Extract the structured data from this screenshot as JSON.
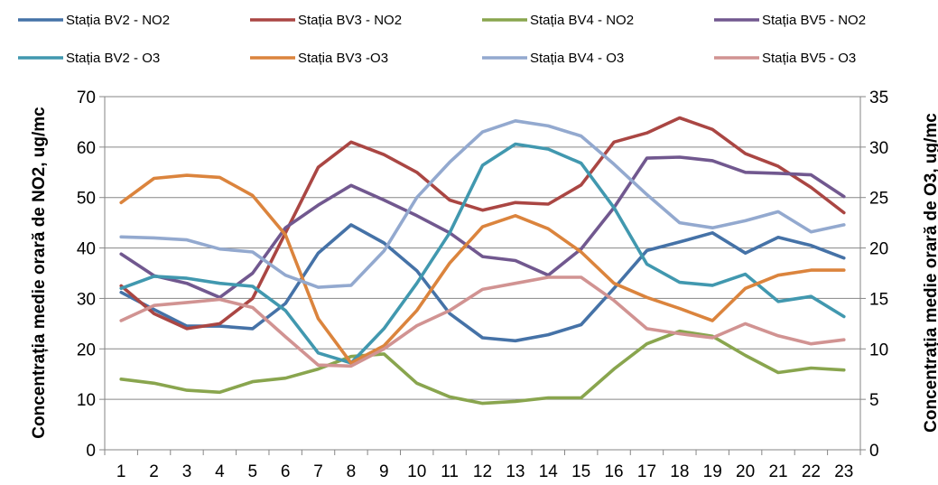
{
  "chart_data": {
    "type": "line",
    "categories": [
      "1",
      "2",
      "3",
      "4",
      "5",
      "6",
      "7",
      "8",
      "9",
      "10",
      "11",
      "12",
      "13",
      "14",
      "15",
      "16",
      "17",
      "18",
      "19",
      "20",
      "21",
      "22",
      "23"
    ],
    "ylabel_left": "Concentrația medie orară de NO2, ug/mc",
    "ylabel_right": "Concentrația medie orară de O3, ug/mc",
    "ylim_left": [
      0,
      70
    ],
    "ylim_right": [
      0,
      35
    ],
    "yticks_left": [
      "0",
      "10",
      "20",
      "30",
      "40",
      "50",
      "60",
      "70"
    ],
    "yticks_right": [
      "0",
      "5",
      "10",
      "15",
      "20",
      "25",
      "30",
      "35"
    ],
    "grid": true,
    "legend_position": "top",
    "series": [
      {
        "name": "Stația BV2 - NO2",
        "axis": "left",
        "color": "#4572A7",
        "values": [
          31.2,
          27.8,
          24.5,
          24.5,
          24.0,
          29.0,
          39.0,
          44.6,
          41.0,
          35.5,
          27.0,
          22.2,
          21.6,
          22.8,
          24.8,
          32.0,
          39.5,
          41.2,
          43.0,
          39.0,
          42.1,
          40.5,
          38.0
        ]
      },
      {
        "name": "Stația BV3 - NO2",
        "axis": "left",
        "color": "#AA4643",
        "values": [
          32.5,
          27.0,
          24.0,
          25.0,
          30.0,
          43.0,
          56.0,
          61.0,
          58.5,
          55.0,
          49.5,
          47.5,
          49.0,
          48.7,
          52.5,
          61.0,
          62.8,
          65.8,
          63.5,
          58.7,
          56.2,
          52.0,
          47.0
        ]
      },
      {
        "name": "Stația BV4 - NO2",
        "axis": "left",
        "color": "#89A54E",
        "values": [
          14.0,
          13.2,
          11.8,
          11.4,
          13.5,
          14.2,
          16.0,
          18.5,
          19.0,
          13.2,
          10.5,
          9.2,
          9.6,
          10.3,
          10.3,
          16.0,
          21.0,
          23.5,
          22.5,
          18.7,
          15.3,
          16.2,
          15.8
        ]
      },
      {
        "name": "Stația BV5 - NO2",
        "axis": "left",
        "color": "#71588F",
        "values": [
          38.8,
          34.5,
          33.0,
          30.2,
          35.0,
          44.0,
          48.5,
          52.4,
          49.5,
          46.4,
          43.0,
          38.3,
          37.5,
          34.6,
          39.8,
          48.0,
          57.8,
          58.0,
          57.3,
          55.0,
          54.8,
          54.5,
          50.2
        ]
      },
      {
        "name": "Stația BV2 - O3",
        "axis": "right",
        "color": "#4198AF",
        "values": [
          16.0,
          17.2,
          17.0,
          16.5,
          16.2,
          13.8,
          9.6,
          8.6,
          12.0,
          16.5,
          21.5,
          28.2,
          30.3,
          29.8,
          28.4,
          24.0,
          18.4,
          16.6,
          16.3,
          17.4,
          14.7,
          15.2,
          13.2
        ]
      },
      {
        "name": "Stația BV3 -O3",
        "axis": "right",
        "color": "#DB843D",
        "values": [
          24.5,
          26.9,
          27.2,
          27.0,
          25.2,
          21.3,
          13.0,
          8.6,
          10.3,
          13.8,
          18.5,
          22.1,
          23.2,
          21.9,
          19.6,
          16.5,
          15.1,
          14.0,
          12.8,
          16.0,
          17.3,
          17.8,
          17.8
        ]
      },
      {
        "name": "Stația BV4 - O3",
        "axis": "right",
        "color": "#93A9CF",
        "values": [
          21.1,
          21.0,
          20.8,
          19.9,
          19.6,
          17.3,
          16.1,
          16.3,
          19.7,
          25.0,
          28.5,
          31.5,
          32.6,
          32.1,
          31.1,
          28.3,
          25.3,
          22.5,
          22.0,
          22.7,
          23.6,
          21.6,
          22.3
        ]
      },
      {
        "name": "Stația BV5 - O3",
        "axis": "right",
        "color": "#D19392",
        "values": [
          12.8,
          14.3,
          14.6,
          14.9,
          14.1,
          11.2,
          8.4,
          8.3,
          10.0,
          12.3,
          13.8,
          15.9,
          16.5,
          17.1,
          17.1,
          14.8,
          12.0,
          11.5,
          11.1,
          12.5,
          11.3,
          10.5,
          10.9
        ]
      }
    ]
  }
}
